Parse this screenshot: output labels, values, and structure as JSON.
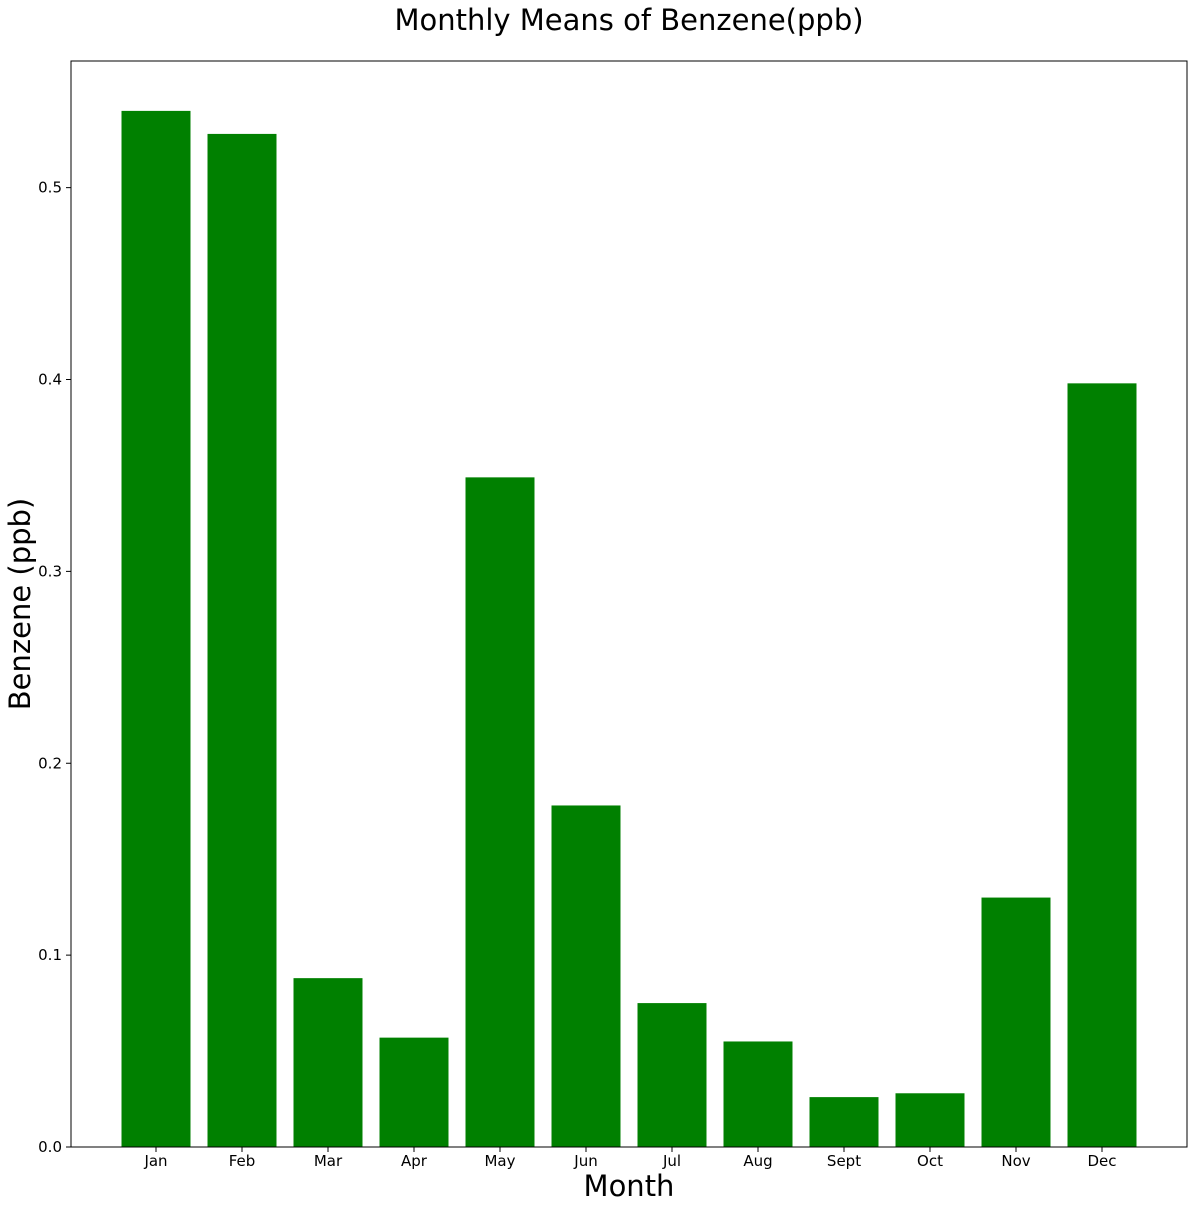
{
  "chart_data": {
    "type": "bar",
    "title": "Monthly Means of Benzene(ppb)",
    "xlabel": "Month",
    "ylabel": "Benzene (ppb)",
    "categories": [
      "Jan",
      "Feb",
      "Mar",
      "Apr",
      "May",
      "Jun",
      "Jul",
      "Aug",
      "Sept",
      "Oct",
      "Nov",
      "Dec"
    ],
    "values": [
      0.54,
      0.528,
      0.088,
      0.057,
      0.349,
      0.178,
      0.075,
      0.055,
      0.026,
      0.028,
      0.13,
      0.398
    ],
    "ylim": [
      0,
      0.566
    ],
    "yticks": [
      "0.0",
      "0.1",
      "0.2",
      "0.3",
      "0.4",
      "0.5"
    ],
    "bar_color": "#008000",
    "grid": false
  }
}
